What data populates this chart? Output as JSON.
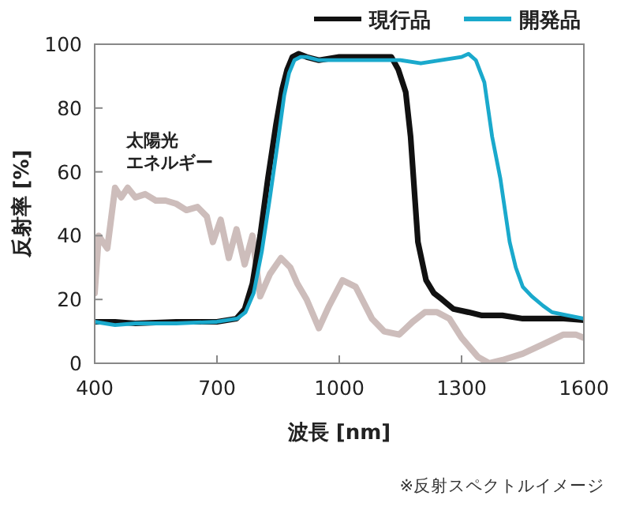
{
  "chart_data": {
    "type": "line",
    "xlabel": "波長 [nm]",
    "ylabel": "反射率 [%]",
    "xlim": [
      400,
      1600
    ],
    "ylim": [
      0,
      100
    ],
    "xticks": [
      400,
      700,
      1000,
      1300,
      1600
    ],
    "yticks": [
      0,
      20,
      40,
      60,
      80,
      100
    ],
    "grid": false,
    "legend": "top right",
    "line_style": "solid",
    "marker": "none",
    "annotations": [
      "※反射スペクトルイメージ"
    ],
    "series": [
      {
        "name": "太陽光エネルギー",
        "color": "#cdbdbb",
        "x": [
          400,
          410,
          420,
          431,
          450,
          465,
          481,
          500,
          524,
          550,
          574,
          600,
          625,
          652,
          675,
          690,
          709,
          729,
          748,
          768,
          787,
          806,
          830,
          857,
          880,
          897,
          920,
          950,
          975,
          1008,
          1040,
          1080,
          1110,
          1147,
          1180,
          1210,
          1240,
          1270,
          1300,
          1340,
          1368,
          1400,
          1450,
          1500,
          1550,
          1580,
          1600
        ],
        "values": [
          22,
          40,
          38,
          36,
          55,
          52,
          55,
          52,
          53,
          51,
          51,
          50,
          48,
          49,
          46,
          38,
          45,
          33,
          42,
          31,
          40,
          21,
          28,
          33,
          30,
          25,
          20,
          11,
          18,
          26,
          24,
          14,
          10,
          9,
          13,
          16,
          16,
          14,
          8,
          2,
          0,
          1,
          3,
          6,
          9,
          9,
          8
        ]
      },
      {
        "name": "現行品",
        "color": "#111111",
        "x": [
          400,
          450,
          500,
          600,
          700,
          748,
          768,
          787,
          806,
          825,
          845,
          860,
          872,
          885,
          900,
          920,
          950,
          1000,
          1050,
          1100,
          1128,
          1145,
          1163,
          1175,
          1193,
          1213,
          1232,
          1252,
          1280,
          1317,
          1350,
          1400,
          1450,
          1500,
          1550,
          1600
        ],
        "values": [
          13,
          13,
          12.5,
          13,
          13,
          14,
          17,
          25,
          40,
          58,
          75,
          86,
          92,
          96,
          97,
          96,
          95,
          96,
          96,
          96,
          96,
          92,
          85,
          71,
          38,
          26,
          22,
          20,
          17,
          16,
          15,
          15,
          14,
          14,
          14,
          13.5
        ]
      },
      {
        "name": "開発品",
        "color": "#1aa9cc",
        "x": [
          400,
          450,
          500,
          600,
          700,
          750,
          770,
          790,
          810,
          830,
          850,
          865,
          877,
          890,
          905,
          920,
          950,
          1000,
          1050,
          1100,
          1150,
          1200,
          1250,
          1300,
          1317,
          1335,
          1356,
          1375,
          1395,
          1418,
          1433,
          1450,
          1472,
          1500,
          1522,
          1560,
          1600
        ],
        "values": [
          13,
          12,
          12.5,
          12.5,
          13,
          14,
          16,
          22,
          35,
          52,
          70,
          84,
          91,
          95,
          96,
          96,
          95,
          95,
          95,
          95,
          95,
          94,
          95,
          96,
          97,
          95,
          88,
          71,
          58,
          38,
          30,
          24,
          21,
          18,
          16,
          15,
          14
        ]
      }
    ]
  }
}
